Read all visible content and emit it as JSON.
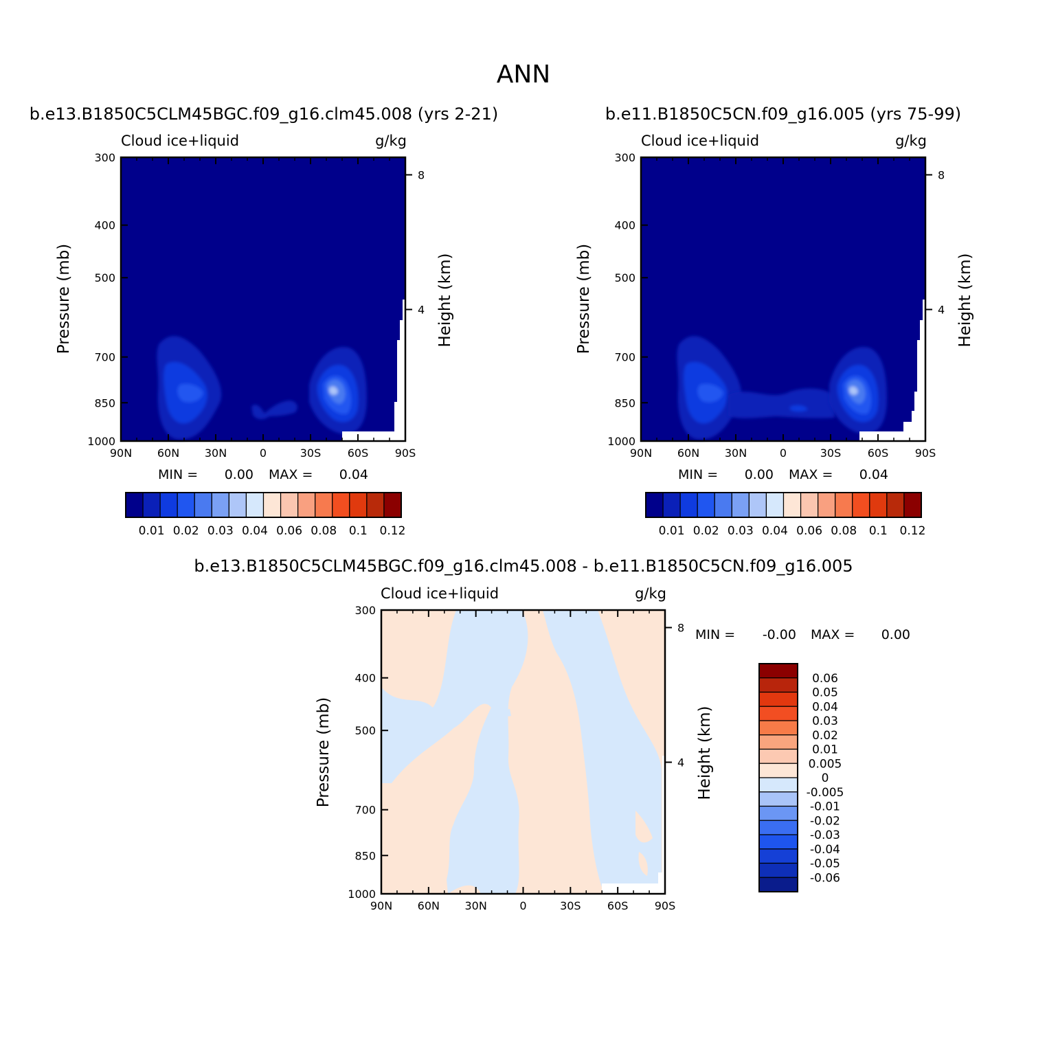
{
  "page_title": "ANN",
  "colors": {
    "seq": [
      "#00008b",
      "#0a20b8",
      "#0f3be0",
      "#2056f0",
      "#4a7af0",
      "#7aa0f4",
      "#aec6f8",
      "#d6e8fc",
      "#fde6d6",
      "#fbc6b0",
      "#f9a080",
      "#f77a4e",
      "#f24e20",
      "#e03a0e",
      "#b82a0a",
      "#8b0000"
    ],
    "diff": [
      "#0a1c8c",
      "#0e2fb8",
      "#1540d6",
      "#1e55ee",
      "#3a6ef2",
      "#6b96f4",
      "#a9c4f8",
      "#d6e8fc",
      "#fde6d6",
      "#fcc9b2",
      "#f9a57e",
      "#f77b48",
      "#f24e22",
      "#e2380f",
      "#b8250c",
      "#8b0000"
    ]
  },
  "panels": [
    {
      "case": "b.e13.B1850C5CLM45BGC.f09_g16.clm45.008 (yrs 2-21)",
      "variable": "Cloud ice+liquid",
      "units": "g/kg",
      "ylabel": "Pressure (mb)",
      "y2label": "Height (km)",
      "min_label": "MIN =",
      "min_value": "0.00",
      "max_label": "MAX =",
      "max_value": "0.04"
    },
    {
      "case": "b.e11.B1850C5CN.f09_g16.005 (yrs 75-99)",
      "variable": "Cloud ice+liquid",
      "units": "g/kg",
      "ylabel": "Pressure (mb)",
      "y2label": "Height (km)",
      "min_label": "MIN =",
      "min_value": "0.00",
      "max_label": "MAX =",
      "max_value": "0.04"
    },
    {
      "case": "b.e13.B1850C5CLM45BGC.f09_g16.clm45.008 - b.e11.B1850C5CN.f09_g16.005",
      "variable": "Cloud ice+liquid",
      "units": "g/kg",
      "ylabel": "Pressure (mb)",
      "y2label": "Height (km)",
      "min_label": "MIN =",
      "min_value": "-0.00",
      "max_label": "MAX =",
      "max_value": "0.00"
    }
  ],
  "chart_data": [
    {
      "type": "heatmap",
      "title": "b.e13.B1850C5CLM45BGC.f09_g16.clm45.008 (yrs 2-21)",
      "x_ticks": [
        "90N",
        "60N",
        "30N",
        "0",
        "30S",
        "60S",
        "90S"
      ],
      "y_ticks": [
        "300",
        "400",
        "500",
        "700",
        "850",
        "1000"
      ],
      "y2_ticks": [
        "8",
        "4"
      ],
      "xlim": [
        90,
        -90
      ],
      "ylim": [
        1000,
        300
      ],
      "colorbar_labels": [
        "0.01",
        "0.02",
        "0.03",
        "0.04",
        "0.06",
        "0.08",
        "0.1",
        "0.12"
      ],
      "min": 0.0,
      "max": 0.04,
      "features": [
        {
          "lat": 52,
          "p": 870,
          "peak": 0.03
        },
        {
          "lat": -44,
          "p": 880,
          "peak": 0.04
        }
      ]
    },
    {
      "type": "heatmap",
      "title": "b.e11.B1850C5CN.f09_g16.005 (yrs 75-99)",
      "x_ticks": [
        "90N",
        "60N",
        "30N",
        "0",
        "30S",
        "60S",
        "90S"
      ],
      "y_ticks": [
        "300",
        "400",
        "500",
        "700",
        "850",
        "1000"
      ],
      "y2_ticks": [
        "8",
        "4"
      ],
      "xlim": [
        90,
        -90
      ],
      "ylim": [
        1000,
        300
      ],
      "colorbar_labels": [
        "0.01",
        "0.02",
        "0.03",
        "0.04",
        "0.06",
        "0.08",
        "0.1",
        "0.12"
      ],
      "min": 0.0,
      "max": 0.04,
      "features": [
        {
          "lat": 52,
          "p": 870,
          "peak": 0.03
        },
        {
          "lat": -44,
          "p": 880,
          "peak": 0.04
        }
      ]
    },
    {
      "type": "heatmap",
      "title": "b.e13.B1850C5CLM45BGC.f09_g16.clm45.008 - b.e11.B1850C5CN.f09_g16.005",
      "x_ticks": [
        "90N",
        "60N",
        "30N",
        "0",
        "30S",
        "60S",
        "90S"
      ],
      "y_ticks": [
        "300",
        "400",
        "500",
        "700",
        "850",
        "1000"
      ],
      "y2_ticks": [
        "8",
        "4"
      ],
      "xlim": [
        90,
        -90
      ],
      "ylim": [
        1000,
        300
      ],
      "colorbar_labels": [
        "0.06",
        "0.05",
        "0.04",
        "0.03",
        "0.02",
        "0.01",
        "0.005",
        "0",
        "-0.005",
        "-0.01",
        "-0.02",
        "-0.03",
        "-0.04",
        "-0.05",
        "-0.06"
      ],
      "min": -0.0,
      "max": 0.0
    }
  ]
}
